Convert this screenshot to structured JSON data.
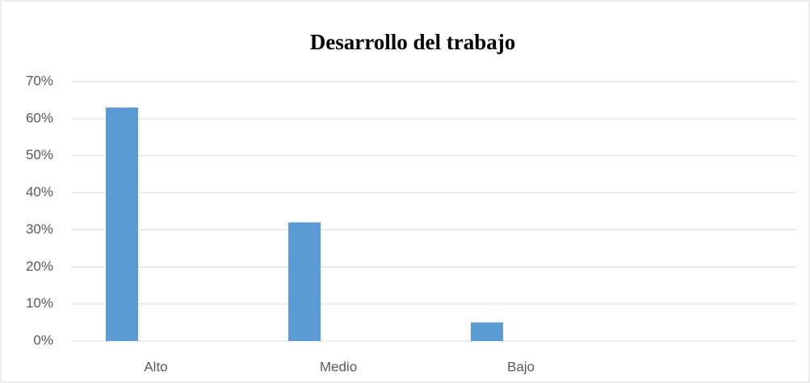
{
  "chart_data": {
    "type": "bar",
    "title": "Desarrollo del trabajo",
    "categories": [
      "Alto",
      "Medio",
      "Bajo",
      null
    ],
    "values": [
      63,
      32,
      5,
      null
    ],
    "color": "#5b9bd5",
    "ylim": [
      0,
      70
    ],
    "yticks": [
      {
        "value": 0,
        "label": "0%"
      },
      {
        "value": 10,
        "label": "10%"
      },
      {
        "value": 20,
        "label": "20%"
      },
      {
        "value": 30,
        "label": "30%"
      },
      {
        "value": 40,
        "label": "40%"
      },
      {
        "value": 50,
        "label": "50%"
      },
      {
        "value": 60,
        "label": "60%"
      },
      {
        "value": 70,
        "label": "70%"
      }
    ],
    "grid": true
  }
}
